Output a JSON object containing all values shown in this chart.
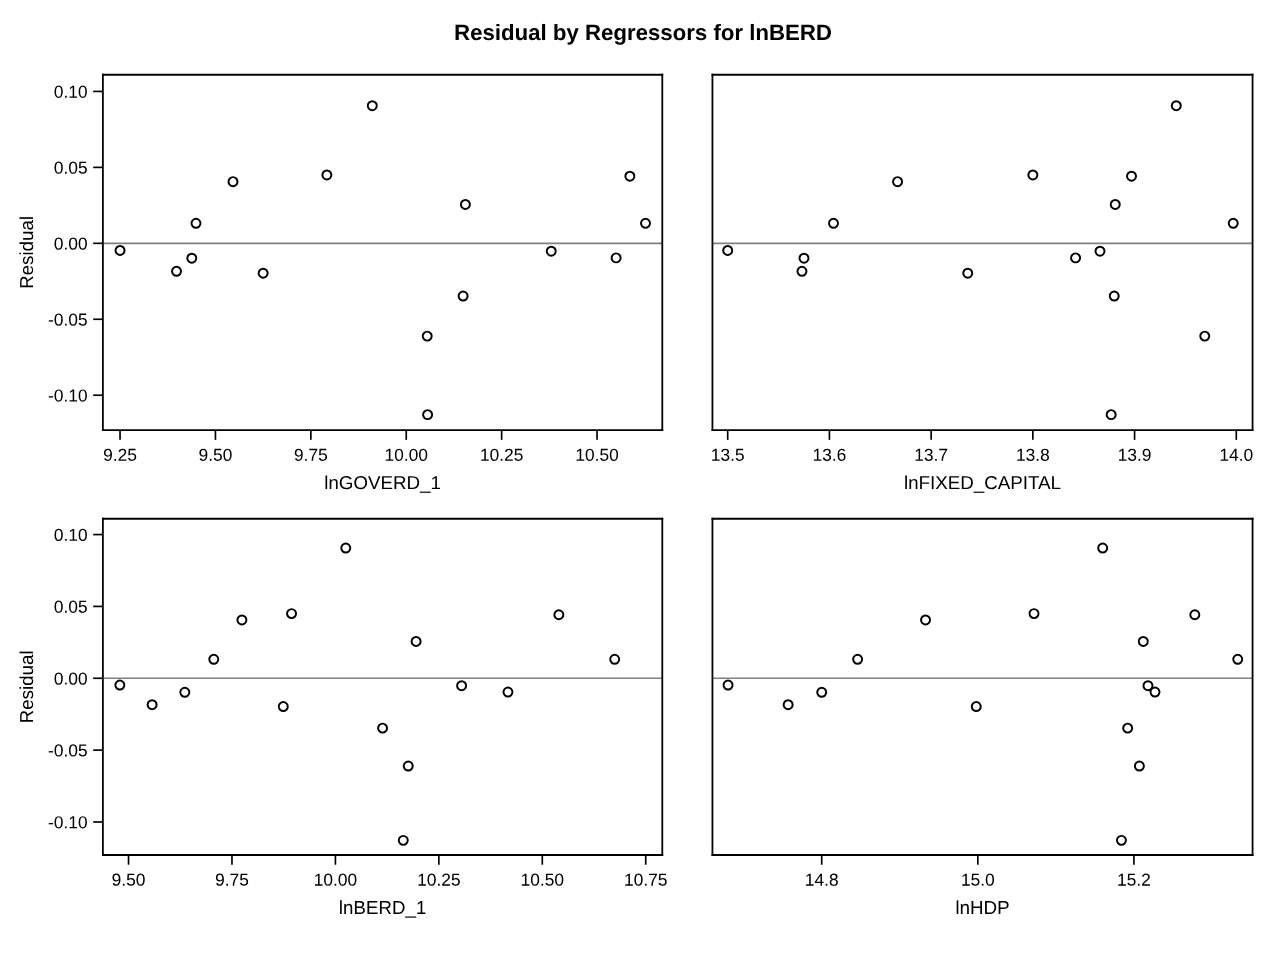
{
  "chart_data": [
    {
      "type": "scatter",
      "title": "Residual by Regressors for lnBERD",
      "xlabel": "lnGOVERD_1",
      "ylabel": "Residual",
      "marker": "circle",
      "grid": false,
      "legend": false,
      "series": [
        {
          "color": "#000000",
          "x": [
            9.25,
            9.398,
            9.438,
            9.449,
            9.546,
            9.625,
            9.792,
            9.911,
            10.055,
            10.056,
            10.149,
            10.155,
            10.38,
            10.55,
            10.586,
            10.627
          ],
          "values": [
            -0.0047,
            -0.0184,
            -0.0098,
            0.0132,
            0.0406,
            -0.0197,
            0.045,
            0.0906,
            -0.0611,
            -0.1128,
            -0.0347,
            0.0256,
            -0.0052,
            -0.0096,
            0.0442,
            0.0132
          ]
        }
      ],
      "xlim": [
        9.205,
        10.671
      ],
      "xticks": [
        {
          "value": 9.25,
          "label": "9.25"
        },
        {
          "value": 9.5,
          "label": "9.50"
        },
        {
          "value": 9.75,
          "label": "9.75"
        },
        {
          "value": 10.0,
          "label": "10.00"
        },
        {
          "value": 10.25,
          "label": "10.25"
        },
        {
          "value": 10.5,
          "label": "10.50"
        }
      ],
      "ylim": [
        -0.123,
        0.111
      ],
      "yticks": [
        {
          "value": -0.1,
          "label": "-0.10"
        },
        {
          "value": -0.05,
          "label": "-0.05"
        },
        {
          "value": 0,
          "label": "0.00"
        },
        {
          "value": 0.05,
          "label": "0.05"
        },
        {
          "value": 0.1,
          "label": "0.10"
        }
      ],
      "ref_lines": [
        {
          "axis": "y",
          "value": 0,
          "color": "#808080"
        }
      ]
    },
    {
      "type": "scatter",
      "xlabel": "lnFIXED_CAPITAL",
      "marker": "circle",
      "grid": false,
      "legend": false,
      "tick_labels": "x",
      "series": [
        {
          "color": "#000000",
          "x": [
            13.5,
            13.575,
            13.573,
            13.604,
            13.667,
            13.736,
            13.8,
            13.941,
            13.897,
            13.881,
            13.997,
            13.866,
            13.842,
            13.88,
            13.969,
            13.877
          ],
          "values": [
            -0.0047,
            -0.0098,
            -0.0184,
            0.0132,
            0.0406,
            -0.0197,
            0.045,
            0.0906,
            0.0442,
            0.0256,
            0.0132,
            -0.0052,
            -0.0096,
            -0.0347,
            -0.0611,
            -0.1128
          ]
        }
      ],
      "xlim": [
        13.485,
        14.016
      ],
      "xticks": [
        {
          "value": 13.5,
          "label": "13.5"
        },
        {
          "value": 13.6,
          "label": "13.6"
        },
        {
          "value": 13.7,
          "label": "13.7"
        },
        {
          "value": 13.8,
          "label": "13.8"
        },
        {
          "value": 13.9,
          "label": "13.9"
        },
        {
          "value": 14.0,
          "label": "14.0"
        }
      ],
      "ylim": [
        -0.123,
        0.111
      ],
      "ref_lines": [
        {
          "axis": "y",
          "value": 0,
          "color": "#808080"
        }
      ]
    },
    {
      "type": "scatter",
      "xlabel": "lnBERD_1",
      "ylabel": "Residual",
      "marker": "circle",
      "grid": false,
      "legend": false,
      "series": [
        {
          "color": "#000000",
          "x": [
            9.479,
            9.557,
            9.636,
            9.706,
            9.774,
            9.874,
            9.894,
            10.025,
            10.114,
            10.176,
            10.164,
            10.195,
            10.305,
            10.417,
            10.54,
            10.675
          ],
          "values": [
            -0.0047,
            -0.0184,
            -0.0098,
            0.0132,
            0.0406,
            -0.0197,
            0.045,
            0.0906,
            -0.0347,
            -0.0611,
            -0.1128,
            0.0256,
            -0.0052,
            -0.0096,
            0.0442,
            0.0132
          ]
        }
      ],
      "xlim": [
        9.438,
        10.79
      ],
      "xticks": [
        {
          "value": 9.5,
          "label": "9.50"
        },
        {
          "value": 9.75,
          "label": "9.75"
        },
        {
          "value": 10.0,
          "label": "10.00"
        },
        {
          "value": 10.25,
          "label": "10.25"
        },
        {
          "value": 10.5,
          "label": "10.50"
        },
        {
          "value": 10.75,
          "label": "10.75"
        }
      ],
      "ylim": [
        -0.123,
        0.111
      ],
      "yticks": [
        {
          "value": -0.1,
          "label": "-0.10"
        },
        {
          "value": -0.05,
          "label": "-0.05"
        },
        {
          "value": 0,
          "label": "0.00"
        },
        {
          "value": 0.05,
          "label": "0.05"
        },
        {
          "value": 0.1,
          "label": "0.10"
        }
      ],
      "ref_lines": [
        {
          "axis": "y",
          "value": 0,
          "color": "#808080"
        }
      ]
    },
    {
      "type": "scatter",
      "xlabel": "lnHDP",
      "marker": "circle",
      "grid": false,
      "legend": false,
      "tick_labels": "x",
      "series": [
        {
          "color": "#000000",
          "x": [
            14.68,
            14.757,
            14.8,
            14.846,
            14.933,
            14.998,
            15.072,
            15.16,
            15.192,
            15.207,
            15.184,
            15.212,
            15.218,
            15.227,
            15.278,
            15.333
          ],
          "values": [
            -0.0047,
            -0.0184,
            -0.0098,
            0.0132,
            0.0406,
            -0.0197,
            0.045,
            0.0906,
            -0.0347,
            -0.0611,
            -0.1128,
            0.0256,
            -0.0052,
            -0.0096,
            0.0442,
            0.0132
          ]
        }
      ],
      "xlim": [
        14.66,
        15.352
      ],
      "xticks": [
        {
          "value": 14.8,
          "label": "14.8"
        },
        {
          "value": 15.0,
          "label": "15.0"
        },
        {
          "value": 15.2,
          "label": "15.2"
        }
      ],
      "ylim": [
        -0.123,
        0.111
      ],
      "ref_lines": [
        {
          "axis": "y",
          "value": 0,
          "color": "#808080"
        }
      ]
    }
  ]
}
